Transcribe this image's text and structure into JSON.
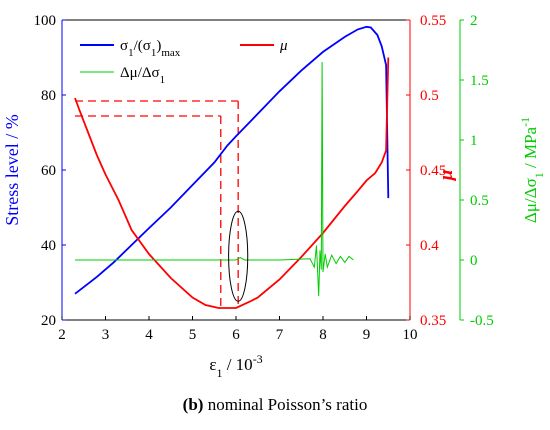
{
  "chart_data": {
    "type": "line",
    "x_axis": {
      "label_base": "ε",
      "label_sub": "1",
      "label_rest": " / 10",
      "label_sup": "-3",
      "range": [
        2,
        10
      ],
      "ticks": [
        "2",
        "3",
        "4",
        "5",
        "6",
        "7",
        "8",
        "9",
        "10"
      ]
    },
    "y_left": {
      "label": "Stress level / %",
      "range": [
        20,
        100
      ],
      "ticks": [
        "20",
        "40",
        "60",
        "80",
        "100"
      ],
      "color": "#0000ff"
    },
    "y_right1": {
      "label": "μ",
      "range": [
        0.35,
        0.55
      ],
      "ticks": [
        "0.35",
        "0.4",
        "0.45",
        "0.5",
        "0.55"
      ],
      "color": "#ff0000"
    },
    "y_right2": {
      "label_parts": [
        "Δμ/Δσ",
        "1",
        " / MPa",
        "-1"
      ],
      "range": [
        -0.5,
        2
      ],
      "ticks": [
        "-0.5",
        "0",
        "0.5",
        "1",
        "1.5",
        "2"
      ],
      "color": "#00cc00"
    },
    "legend": {
      "placement": "top-left",
      "entries": [
        {
          "parts": [
            "σ",
            "1",
            "/(σ",
            "1",
            ")",
            "max"
          ],
          "color": "#0000ff"
        },
        {
          "parts": [
            "μ"
          ],
          "color": "#ff0000"
        },
        {
          "parts": [
            "Δμ/Δσ",
            "1"
          ],
          "color": "#00cc00"
        }
      ]
    },
    "series": [
      {
        "axis": "left",
        "color": "#0000ff",
        "points": [
          [
            2.3,
            27
          ],
          [
            2.8,
            31.5
          ],
          [
            3.2,
            35.5
          ],
          [
            3.6,
            40
          ],
          [
            4.0,
            44.5
          ],
          [
            4.5,
            50
          ],
          [
            5.0,
            56
          ],
          [
            5.5,
            62
          ],
          [
            5.8,
            66.5
          ],
          [
            6.0,
            69
          ],
          [
            6.5,
            75
          ],
          [
            7.0,
            81
          ],
          [
            7.5,
            86.5
          ],
          [
            8.0,
            91.5
          ],
          [
            8.5,
            95.5
          ],
          [
            8.8,
            97.5
          ],
          [
            9.0,
            98.2
          ],
          [
            9.1,
            98
          ],
          [
            9.25,
            96
          ],
          [
            9.35,
            93
          ],
          [
            9.45,
            88
          ],
          [
            9.5,
            52.5
          ]
        ]
      },
      {
        "axis": "right1",
        "color": "#ff0000",
        "points": [
          [
            2.3,
            0.498
          ],
          [
            2.4,
            0.49
          ],
          [
            2.6,
            0.475
          ],
          [
            2.8,
            0.46
          ],
          [
            3.0,
            0.447
          ],
          [
            3.3,
            0.43
          ],
          [
            3.6,
            0.41
          ],
          [
            4.0,
            0.394
          ],
          [
            4.5,
            0.378
          ],
          [
            5.0,
            0.365
          ],
          [
            5.3,
            0.36
          ],
          [
            5.6,
            0.358
          ],
          [
            6.0,
            0.358
          ],
          [
            6.3,
            0.362
          ],
          [
            6.5,
            0.365
          ],
          [
            7.0,
            0.377
          ],
          [
            7.5,
            0.392
          ],
          [
            8.0,
            0.408
          ],
          [
            8.5,
            0.426
          ],
          [
            8.8,
            0.436
          ],
          [
            9.0,
            0.443
          ],
          [
            9.2,
            0.448
          ],
          [
            9.35,
            0.455
          ],
          [
            9.45,
            0.463
          ],
          [
            9.5,
            0.525
          ]
        ]
      },
      {
        "axis": "right2",
        "color": "#00cc00",
        "points": [
          [
            2.3,
            0
          ],
          [
            3.0,
            0
          ],
          [
            4.0,
            0
          ],
          [
            5.0,
            0
          ],
          [
            6.0,
            0
          ],
          [
            6.1,
            0.02
          ],
          [
            6.2,
            0
          ],
          [
            7.0,
            0
          ],
          [
            7.7,
            0.01
          ],
          [
            7.8,
            -0.06
          ],
          [
            7.85,
            0.12
          ],
          [
            7.9,
            -0.3
          ],
          [
            7.93,
            0.08
          ],
          [
            7.96,
            -0.08
          ],
          [
            7.98,
            1.65
          ],
          [
            8.0,
            -0.1
          ],
          [
            8.05,
            0.05
          ],
          [
            8.1,
            -0.06
          ],
          [
            8.2,
            0.04
          ],
          [
            8.3,
            -0.03
          ],
          [
            8.4,
            0.03
          ],
          [
            8.5,
            -0.02
          ],
          [
            8.6,
            0.03
          ],
          [
            8.7,
            0
          ]
        ]
      }
    ],
    "annotations": {
      "dashed_levels_mu": [
        0.496,
        0.486
      ],
      "dashed_drop_x": [
        5.65,
        6.05
      ],
      "ellipse_center": [
        6.05,
        37
      ],
      "ellipse_radius": [
        0.22,
        12
      ]
    }
  },
  "caption": {
    "label": "(b)",
    "text": " nominal Poisson’s ratio"
  }
}
